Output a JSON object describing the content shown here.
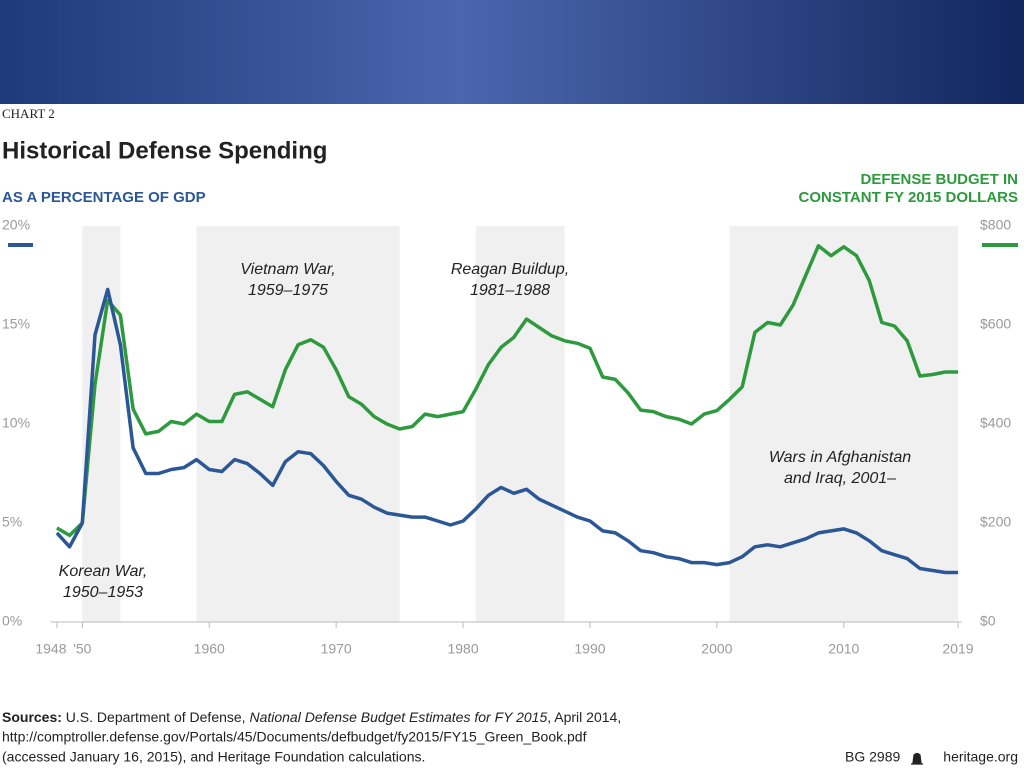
{
  "chart_data": {
    "type": "line",
    "label": "CHART 2",
    "title": "Historical Defense Spending",
    "x": [
      1948,
      1949,
      1950,
      1951,
      1952,
      1953,
      1954,
      1955,
      1956,
      1957,
      1958,
      1959,
      1960,
      1961,
      1962,
      1963,
      1964,
      1965,
      1966,
      1967,
      1968,
      1969,
      1970,
      1971,
      1972,
      1973,
      1974,
      1975,
      1976,
      1977,
      1978,
      1979,
      1980,
      1981,
      1982,
      1983,
      1984,
      1985,
      1986,
      1987,
      1988,
      1989,
      1990,
      1991,
      1992,
      1993,
      1994,
      1995,
      1996,
      1997,
      1998,
      1999,
      2000,
      2001,
      2002,
      2003,
      2004,
      2005,
      2006,
      2007,
      2008,
      2009,
      2010,
      2011,
      2012,
      2013,
      2014,
      2015,
      2016,
      2017,
      2018,
      2019
    ],
    "xlim": [
      1947.5,
      2019.3
    ],
    "xticks": [
      1948,
      {
        "value": 1950,
        "label": "'50"
      },
      1960,
      1970,
      1980,
      1990,
      2000,
      2010,
      2019
    ],
    "ylim": [
      0,
      20
    ],
    "yticks": [
      {
        "value": 0,
        "label": "0%"
      },
      {
        "value": 5,
        "label": "5%"
      },
      {
        "value": 10,
        "label": "10%"
      },
      {
        "value": 15,
        "label": "15%"
      },
      {
        "value": 20,
        "label": "20%"
      }
    ],
    "y2lim": [
      0,
      800
    ],
    "y2ticks": [
      {
        "value": 0,
        "label": "$0"
      },
      {
        "value": 200,
        "label": "$200"
      },
      {
        "value": 400,
        "label": "$400"
      },
      {
        "value": 600,
        "label": "$600"
      },
      {
        "value": 800,
        "label": "$800"
      }
    ],
    "series": [
      {
        "name": "AS A PERCENTAGE OF GDP",
        "color": "#2b5797",
        "values": [
          4.5,
          3.8,
          5.0,
          14.5,
          16.8,
          14.0,
          8.8,
          7.5,
          7.5,
          7.7,
          7.8,
          8.2,
          7.7,
          7.6,
          8.2,
          8.0,
          7.5,
          6.9,
          8.1,
          8.6,
          8.5,
          7.9,
          7.1,
          6.4,
          6.2,
          5.8,
          5.5,
          5.4,
          5.3,
          5.3,
          5.1,
          4.9,
          5.1,
          5.7,
          6.4,
          6.8,
          6.5,
          6.7,
          6.2,
          5.9,
          5.6,
          5.3,
          5.1,
          4.6,
          4.5,
          4.1,
          3.6,
          3.5,
          3.3,
          3.2,
          3.0,
          3.0,
          2.9,
          3.0,
          3.3,
          3.8,
          3.9,
          3.8,
          4.0,
          4.2,
          4.5,
          4.6,
          4.7,
          4.5,
          4.1,
          3.6,
          3.4,
          3.2,
          2.7,
          2.6,
          2.5,
          2.5
        ]
      },
      {
        "name": [
          "DEFENSE BUDGET IN",
          "CONSTANT FY 2015 DOLLARS"
        ],
        "color": "#2e9a3e",
        "axis": "y2",
        "values": [
          190,
          175,
          200,
          480,
          650,
          620,
          430,
          380,
          385,
          405,
          400,
          420,
          405,
          405,
          460,
          465,
          450,
          435,
          510,
          560,
          570,
          555,
          510,
          455,
          440,
          415,
          400,
          390,
          395,
          420,
          415,
          420,
          425,
          470,
          520,
          555,
          575,
          612,
          595,
          578,
          568,
          563,
          553,
          495,
          490,
          463,
          428,
          425,
          415,
          410,
          400,
          420,
          427,
          450,
          475,
          585,
          605,
          600,
          640,
          700,
          760,
          740,
          758,
          740,
          690,
          605,
          598,
          568,
          497,
          500,
          505,
          505
        ]
      }
    ],
    "shaded_periods": [
      [
        1950,
        1953
      ],
      [
        1959,
        1975
      ],
      [
        1981,
        1988
      ],
      [
        2001,
        2019
      ]
    ],
    "annotations": [
      {
        "lines": [
          "Korean War,",
          "1950–1953"
        ]
      },
      {
        "lines": [
          "Vietnam War,",
          "1959–1975"
        ]
      },
      {
        "lines": [
          "Reagan Buildup,",
          "1981–1988"
        ]
      },
      {
        "lines": [
          "Wars in Afghanistan",
          "and Iraq, 2001–"
        ]
      }
    ],
    "sources": {
      "label": "Sources:",
      "line1": [
        " U.S. Department of Defense, ",
        "National Defense Budget Estimates for FY 2015",
        ", April 2014,"
      ],
      "line2": "http://comptroller.defense.gov/Portals/45/Documents/defbudget/fy2015/FY15_Green_Book.pdf",
      "line3": "(accessed January 16, 2015), and Heritage Foundation calculations."
    },
    "report_id": "BG 2989",
    "site": "heritage.org"
  }
}
